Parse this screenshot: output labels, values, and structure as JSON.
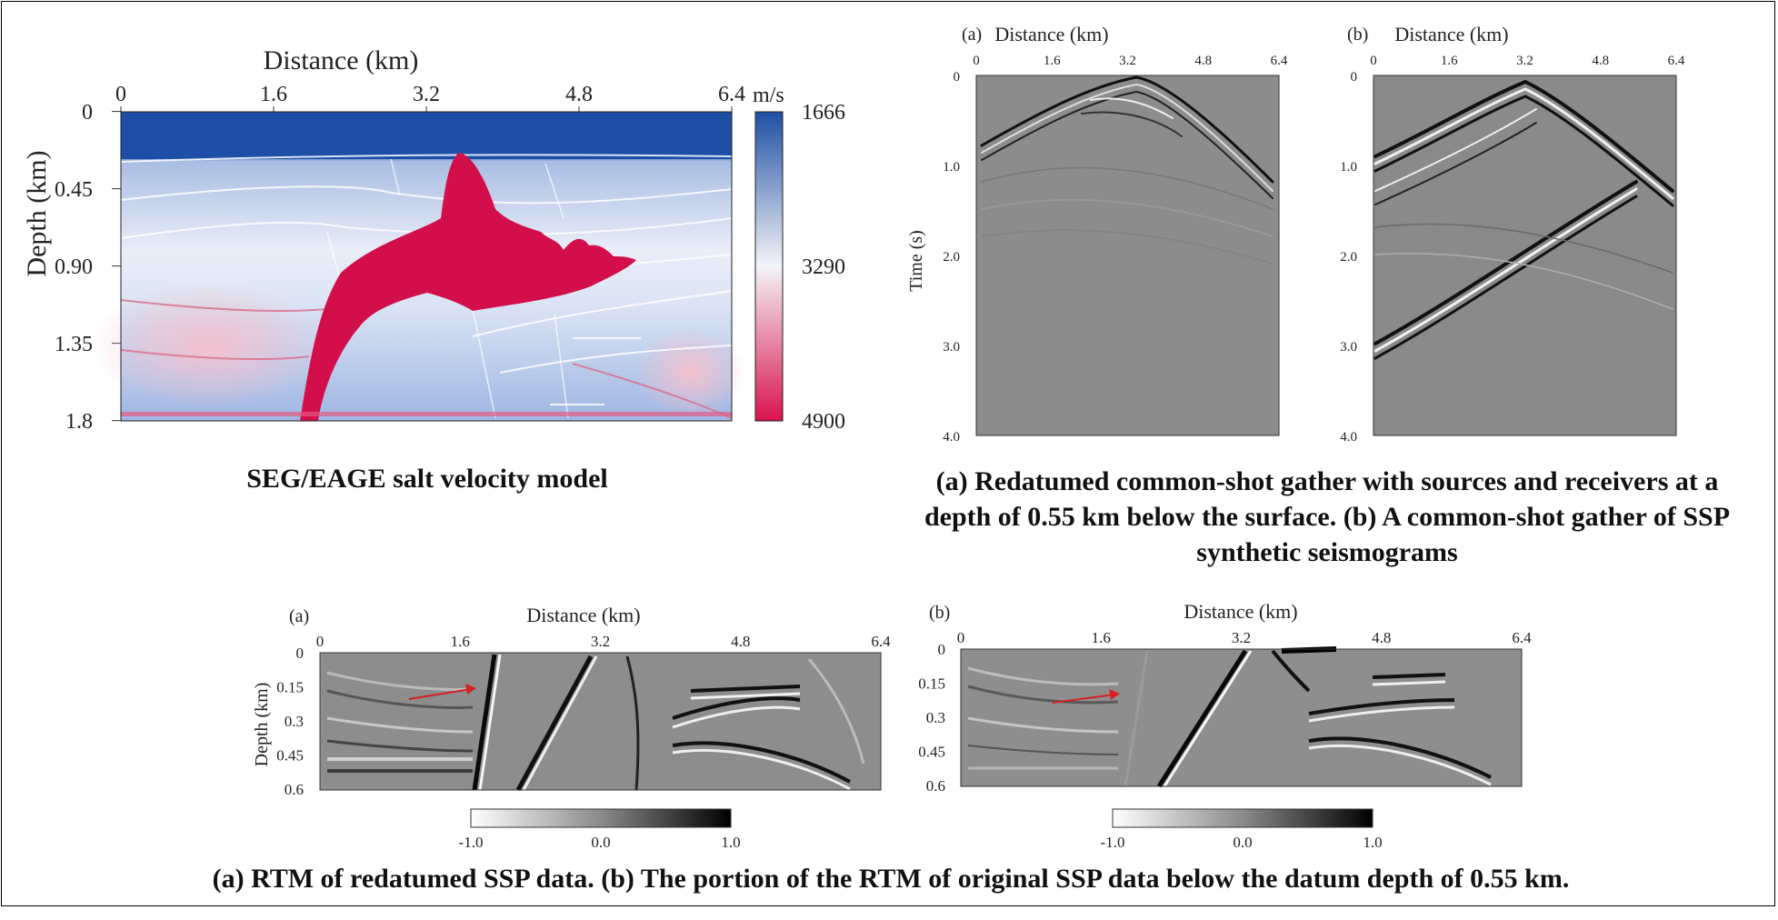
{
  "panel_velocity": {
    "xlabel": "Distance (km)",
    "ylabel": "Depth (km)",
    "x_ticks": [
      "0",
      "1.6",
      "3.2",
      "4.8",
      "6.4"
    ],
    "y_ticks": [
      "0",
      "0.45",
      "0.90",
      "1.35",
      "1.8"
    ],
    "colorbar_unit": "m/s",
    "colorbar_ticks": [
      "1666",
      "3290",
      "4900"
    ],
    "caption": "SEG/EAGE salt velocity model",
    "colors": {
      "low": "#1f4fa3",
      "mid": "#f4f4f8",
      "high": "#d8134d",
      "salt": "#d30f4b"
    }
  },
  "panel_gathers": {
    "a": {
      "label": "(a)",
      "xlabel": "Distance (km)",
      "ylabel": "Time (s)",
      "x_ticks": [
        "0",
        "1.6",
        "3.2",
        "4.8",
        "6.4"
      ],
      "y_ticks": [
        "0",
        "1.0",
        "2.0",
        "3.0",
        "4.0"
      ]
    },
    "b": {
      "label": "(b)",
      "xlabel": "Distance (km)",
      "x_ticks": [
        "0",
        "1.6",
        "3.2",
        "4.8",
        "6.4"
      ],
      "y_ticks": [
        "0",
        "1.0",
        "2.0",
        "3.0",
        "4.0"
      ]
    },
    "caption": "(a) Redatumed common-shot gather with sources and receivers at a depth of 0.55 km below the surface. (b) A common-shot gather of SSP synthetic seismograms"
  },
  "panel_rtm": {
    "a": {
      "label": "(a)",
      "xlabel": "Distance (km)",
      "ylabel": "Depth (km)",
      "x_ticks": [
        "0",
        "1.6",
        "3.2",
        "4.8",
        "6.4"
      ],
      "y_ticks": [
        "0",
        "0.15",
        "0.3",
        "0.45",
        "0.6"
      ],
      "colorbar_ticks": [
        "-1.0",
        "0.0",
        "1.0"
      ]
    },
    "b": {
      "label": "(b)",
      "xlabel": "Distance (km)",
      "x_ticks": [
        "0",
        "1.6",
        "3.2",
        "4.8",
        "6.4"
      ],
      "y_ticks": [
        "0",
        "0.15",
        "0.3",
        "0.45",
        "0.6"
      ],
      "colorbar_ticks": [
        "-1.0",
        "0.0",
        "1.0"
      ]
    },
    "arrow_color": "#d42020",
    "caption": "(a) RTM of redatumed SSP data. (b) The portion of the RTM of original SSP data below the datum depth of 0.55 km."
  }
}
